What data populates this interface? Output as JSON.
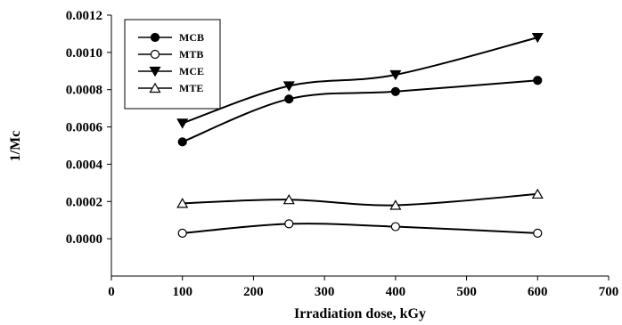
{
  "chart_data": {
    "type": "line",
    "title": "",
    "xlabel": "Irradiation dose, kGy",
    "ylabel": "1/Mc",
    "xlim": [
      0,
      700
    ],
    "ylim": [
      -0.0002,
      0.0012
    ],
    "x_ticks": [
      0,
      100,
      200,
      300,
      400,
      500,
      600,
      700
    ],
    "x_tick_labels": [
      "0",
      "100",
      "200",
      "300",
      "400",
      "500",
      "600",
      "700"
    ],
    "y_ticks": [
      0.0,
      0.0002,
      0.0004,
      0.0006,
      0.0008,
      0.001,
      0.0012
    ],
    "y_tick_labels": [
      "0.0000",
      "0.0002",
      "0.0004",
      "0.0006",
      "0.0008",
      "0.0010",
      "0.0012"
    ],
    "grid": false,
    "legend_position": "top-left",
    "x": [
      100,
      250,
      400,
      600
    ],
    "series": [
      {
        "name": "MCB",
        "marker": "filled-circle",
        "color": "#000000",
        "values": [
          0.00052,
          0.00075,
          0.00079,
          0.00085
        ]
      },
      {
        "name": "MTB",
        "marker": "open-circle",
        "color": "#000000",
        "values": [
          3e-05,
          8e-05,
          6.5e-05,
          3e-05
        ]
      },
      {
        "name": "MCE",
        "marker": "filled-triangle-down",
        "color": "#000000",
        "values": [
          0.00062,
          0.00082,
          0.00088,
          0.00108
        ]
      },
      {
        "name": "MTE",
        "marker": "open-triangle-up",
        "color": "#000000",
        "values": [
          0.00019,
          0.00021,
          0.00018,
          0.00024
        ]
      }
    ]
  }
}
